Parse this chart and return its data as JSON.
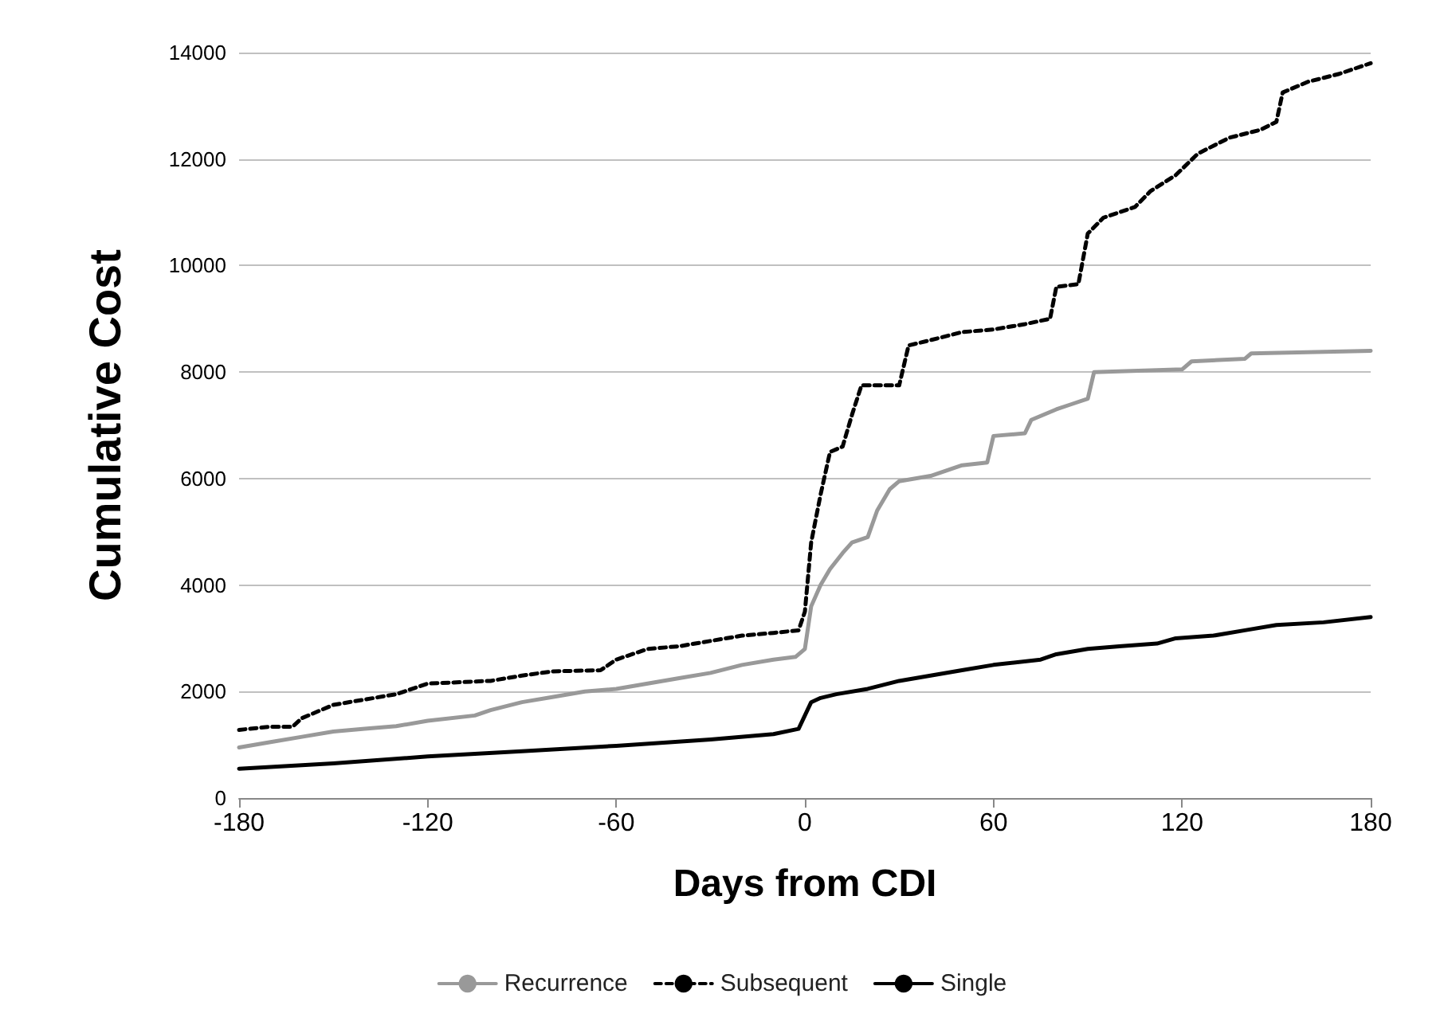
{
  "chart_data": {
    "type": "line",
    "xlabel": "Days from CDI",
    "ylabel": "Cumulative Cost",
    "xlim": [
      -180,
      180
    ],
    "xticks": [
      -180,
      -120,
      -60,
      0,
      60,
      120,
      180
    ],
    "ylim": [
      0,
      14000
    ],
    "yticks": [
      0,
      2000,
      4000,
      6000,
      8000,
      10000,
      12000,
      14000
    ],
    "grid": "y",
    "legend": "bottom",
    "marker": "none",
    "series": [
      {
        "name": "Recurrence",
        "color": "#999999",
        "line_style": "solid",
        "x": [
          -180,
          -170,
          -160,
          -150,
          -140,
          -130,
          -120,
          -105,
          -100,
          -90,
          -80,
          -70,
          -60,
          -50,
          -40,
          -30,
          -20,
          -10,
          -3,
          0,
          2,
          5,
          8,
          12,
          15,
          20,
          23,
          27,
          30,
          40,
          45,
          50,
          58,
          60,
          70,
          72,
          80,
          85,
          90,
          92,
          120,
          123,
          140,
          142,
          180
        ],
        "values": [
          950,
          1050,
          1150,
          1250,
          1300,
          1350,
          1450,
          1550,
          1650,
          1800,
          1900,
          2000,
          2050,
          2150,
          2250,
          2350,
          2500,
          2600,
          2650,
          2800,
          3600,
          4000,
          4300,
          4600,
          4800,
          4900,
          5400,
          5800,
          5950,
          6050,
          6150,
          6250,
          6300,
          6800,
          6850,
          7100,
          7300,
          7400,
          7500,
          8000,
          8050,
          8200,
          8250,
          8350,
          8400
        ]
      },
      {
        "name": "Subsequent",
        "color": "#000000",
        "line_style": "dashed",
        "x": [
          -180,
          -170,
          -163,
          -160,
          -150,
          -140,
          -130,
          -120,
          -100,
          -90,
          -80,
          -65,
          -60,
          -50,
          -40,
          -30,
          -20,
          -10,
          -2,
          0,
          2,
          5,
          8,
          12,
          15,
          18,
          30,
          33,
          40,
          50,
          60,
          70,
          78,
          80,
          87,
          90,
          95,
          105,
          110,
          118,
          125,
          135,
          145,
          150,
          152,
          160,
          170,
          180
        ],
        "values": [
          1280,
          1340,
          1340,
          1500,
          1750,
          1850,
          1950,
          2150,
          2200,
          2300,
          2380,
          2400,
          2600,
          2800,
          2850,
          2950,
          3050,
          3100,
          3150,
          3500,
          4800,
          5700,
          6500,
          6600,
          7200,
          7750,
          7750,
          8500,
          8600,
          8750,
          8800,
          8900,
          9000,
          9600,
          9650,
          10600,
          10900,
          11100,
          11400,
          11700,
          12100,
          12400,
          12550,
          12700,
          13250,
          13450,
          13600,
          13800
        ]
      },
      {
        "name": "Single",
        "color": "#000000",
        "line_style": "solid",
        "x": [
          -180,
          -150,
          -120,
          -90,
          -60,
          -30,
          -10,
          -2,
          2,
          5,
          10,
          20,
          30,
          40,
          50,
          60,
          75,
          80,
          90,
          100,
          112,
          118,
          130,
          140,
          150,
          165,
          180
        ],
        "values": [
          550,
          650,
          780,
          880,
          980,
          1100,
          1200,
          1300,
          1800,
          1880,
          1950,
          2050,
          2200,
          2300,
          2400,
          2500,
          2600,
          2700,
          2800,
          2850,
          2900,
          3000,
          3050,
          3150,
          3250,
          3300,
          3400
        ]
      }
    ]
  }
}
